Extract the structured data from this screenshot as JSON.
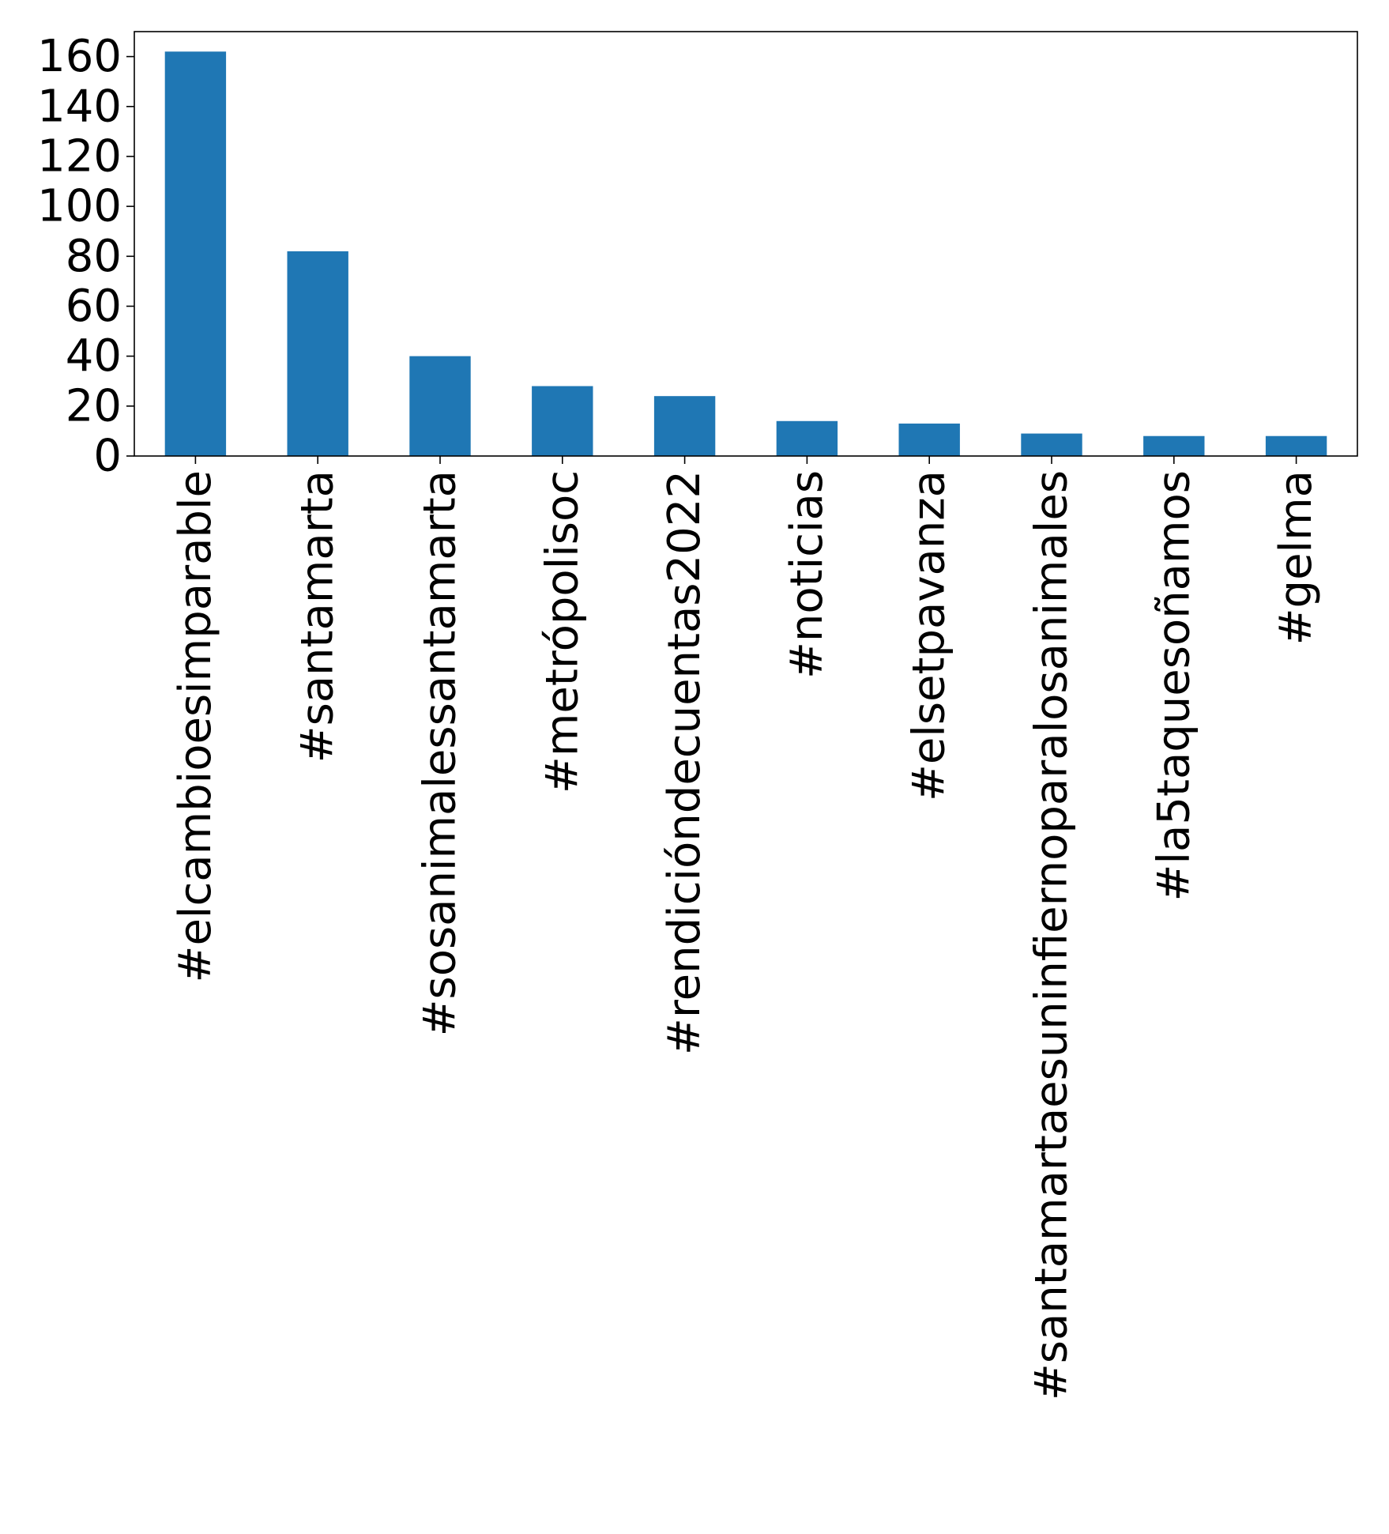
{
  "chart_data": {
    "type": "bar",
    "title": "",
    "xlabel": "",
    "ylabel": "",
    "categories": [
      "#elcambioesimparable",
      "#santamarta",
      "#sosanimalessantamarta",
      "#metrópolisoc",
      "#rendicióndecuentas2022",
      "#noticias",
      "#elsetpavanza",
      "#santamartaesuninfiernoparalosanimales",
      "#la5taquesoñamos",
      "#gelma"
    ],
    "values": [
      162,
      82,
      40,
      28,
      24,
      14,
      13,
      9,
      8,
      8
    ],
    "ylim": [
      0,
      170
    ],
    "yticks": [
      0,
      20,
      40,
      60,
      80,
      100,
      120,
      140,
      160
    ],
    "ytick_labels": [
      "0",
      "20",
      "40",
      "60",
      "80",
      "100",
      "120",
      "140",
      "160"
    ],
    "grid": false,
    "legend": "none",
    "colors": {
      "bar": "#1f77b4",
      "axis": "#000000",
      "background": "#ffffff"
    }
  }
}
